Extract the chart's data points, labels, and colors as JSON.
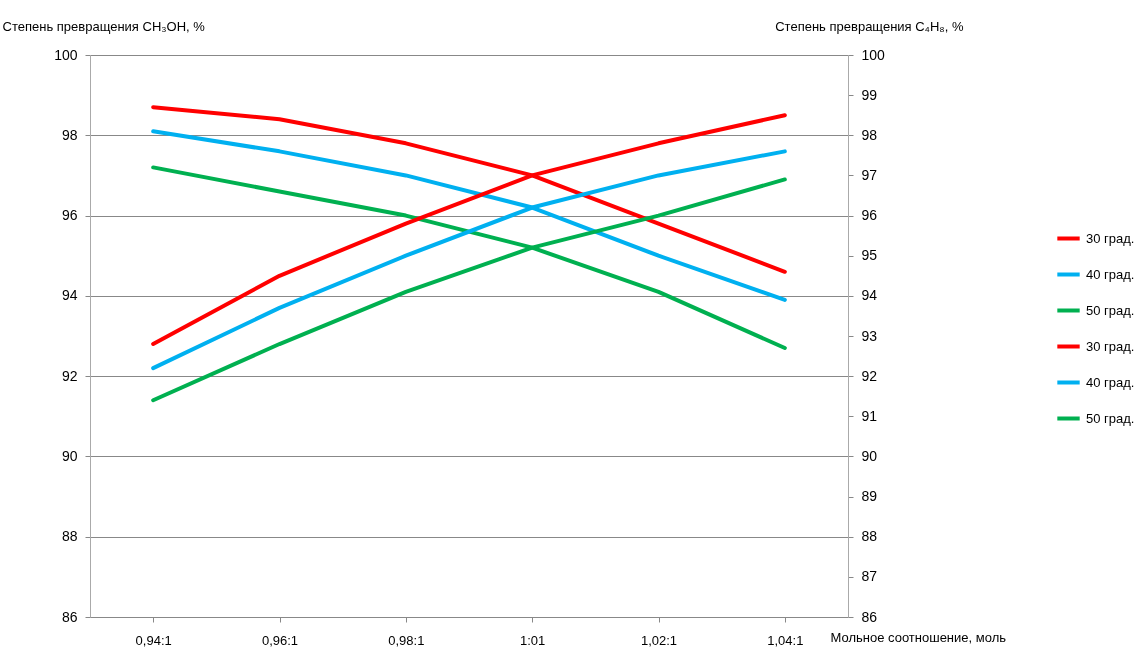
{
  "chart_data": {
    "type": "line",
    "xlabel": "Мольное соотношение, моль",
    "ylabel": "Степень превращения CH₃OH, %",
    "y2label": "Степень превращения C₄H₈, %",
    "categories": [
      "0,94:1",
      "0,96:1",
      "0,98:1",
      "1:01",
      "1,02:1",
      "1,04:1"
    ],
    "series": [
      {
        "name": "30 град.",
        "color": "#ff0000",
        "values": [
          98.7,
          98.4,
          97.8,
          97.0,
          95.8,
          94.6
        ]
      },
      {
        "name": "40 град.",
        "color": "#00b0f0",
        "values": [
          98.1,
          97.6,
          97.0,
          96.2,
          95.0,
          93.9
        ]
      },
      {
        "name": "50 град.",
        "color": "#00b050",
        "values": [
          97.2,
          96.6,
          96.0,
          95.2,
          94.1,
          92.7
        ]
      },
      {
        "name": "30 град.",
        "color": "#ff0000",
        "axis": "y2",
        "values": [
          92.8,
          94.5,
          95.8,
          97.0,
          97.8,
          98.5
        ]
      },
      {
        "name": "40 град.",
        "color": "#00b0f0",
        "axis": "y2",
        "values": [
          92.2,
          93.7,
          95.0,
          96.2,
          97.0,
          97.6
        ]
      },
      {
        "name": "50 град.",
        "color": "#00b050",
        "axis": "y2",
        "values": [
          91.4,
          92.8,
          94.1,
          95.2,
          96.0,
          96.9
        ]
      }
    ],
    "ylim": [
      86,
      100
    ],
    "yticks": [
      86,
      88,
      90,
      92,
      94,
      96,
      98,
      100
    ],
    "y2lim": [
      86,
      100
    ],
    "y2ticks": [
      86,
      87,
      88,
      89,
      90,
      91,
      92,
      93,
      94,
      95,
      96,
      97,
      98,
      99,
      100
    ],
    "grid": "y",
    "legend": "right",
    "marker": "none",
    "line_style": "solid"
  }
}
